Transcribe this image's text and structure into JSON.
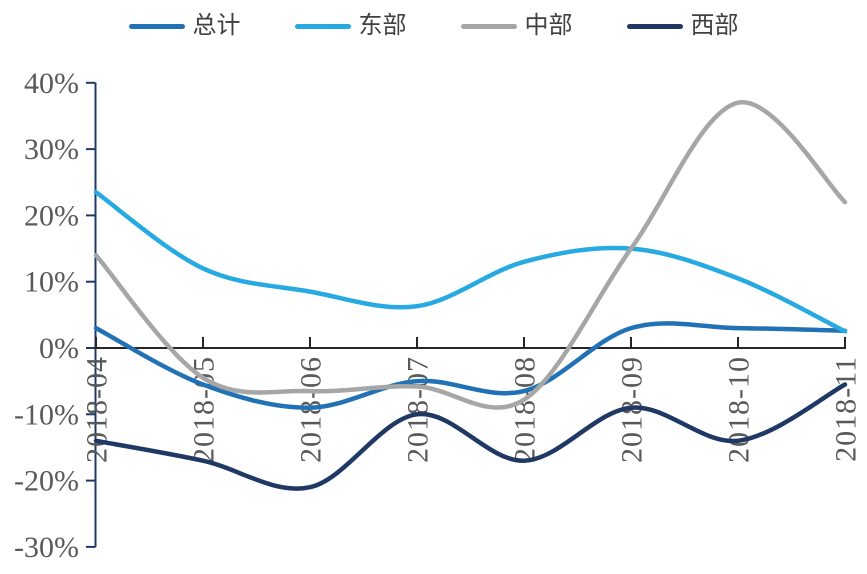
{
  "chart_data": {
    "type": "line",
    "title": "",
    "xlabel": "",
    "ylabel": "",
    "categories": [
      "2018-04",
      "2018-05",
      "2018-06",
      "2018-07",
      "2018-08",
      "2018-09",
      "2018-10",
      "2018-11"
    ],
    "series": [
      {
        "key": "total",
        "name": "总计",
        "color": "#2171B5",
        "values": [
          3,
          -5.5,
          -9,
          -5,
          -6.5,
          3,
          3,
          2.6
        ]
      },
      {
        "key": "east",
        "name": "东部",
        "color": "#27AAE1",
        "values": [
          23.5,
          12,
          8.5,
          6.3,
          13,
          15,
          10.5,
          2.5
        ]
      },
      {
        "key": "central",
        "name": "中部",
        "color": "#A6A6A6",
        "values": [
          14,
          -4.5,
          -6.5,
          -5.8,
          -7.8,
          15,
          37,
          22
        ]
      },
      {
        "key": "west",
        "name": "西部",
        "color": "#1F3864",
        "values": [
          -14,
          -17,
          -21,
          -10,
          -17,
          -9,
          -14,
          -5.5
        ]
      }
    ],
    "y_ticks": [
      {
        "label": "40%",
        "value": 40
      },
      {
        "label": "30%",
        "value": 30
      },
      {
        "label": "20%",
        "value": 20
      },
      {
        "label": "10%",
        "value": 10
      },
      {
        "label": "0%",
        "value": 0
      },
      {
        "label": "-10%",
        "value": -10
      },
      {
        "label": "-20%",
        "value": -20
      },
      {
        "label": "-30%",
        "value": -30
      }
    ],
    "ylim": [
      -30,
      40
    ],
    "grid": false,
    "legend_position": "top",
    "line_smoothing": true,
    "colors": {
      "axis_text": "#595959",
      "y_axis_line": "#1F3864",
      "zero_line": "#262626",
      "background": "#FFFFFF"
    }
  }
}
